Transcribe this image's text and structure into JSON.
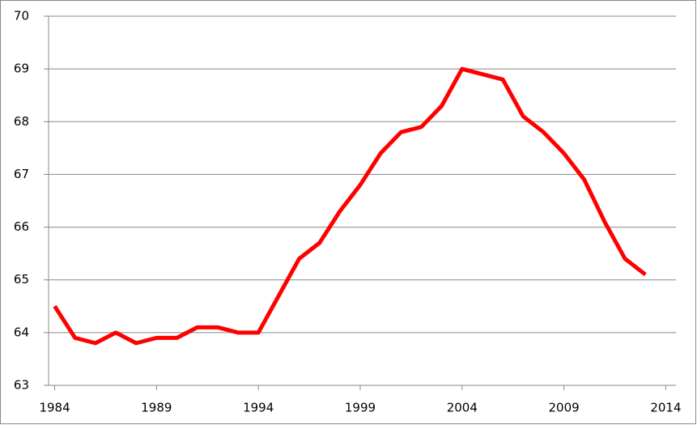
{
  "chart_data": {
    "type": "line",
    "x": [
      1984,
      1985,
      1986,
      1987,
      1988,
      1989,
      1990,
      1991,
      1992,
      1993,
      1994,
      1995,
      1996,
      1997,
      1998,
      1999,
      2000,
      2001,
      2002,
      2003,
      2004,
      2005,
      2006,
      2007,
      2008,
      2009,
      2010,
      2011,
      2012,
      2013
    ],
    "values": [
      64.5,
      63.9,
      63.8,
      64.0,
      63.8,
      63.9,
      63.9,
      64.1,
      64.1,
      64.0,
      64.0,
      64.7,
      65.4,
      65.7,
      66.3,
      66.8,
      67.4,
      67.8,
      67.9,
      68.3,
      69.0,
      68.9,
      68.8,
      68.1,
      67.8,
      67.4,
      66.9,
      66.1,
      65.4,
      65.1
    ],
    "color": "#ff0000",
    "xlim": [
      1983.7,
      2014.5
    ],
    "xticks": [
      1984,
      1989,
      1994,
      1999,
      2004,
      2009,
      2014
    ],
    "ylim": [
      63,
      70
    ],
    "yticks": [
      63,
      64,
      65,
      66,
      67,
      68,
      69,
      70
    ],
    "grid": true
  }
}
